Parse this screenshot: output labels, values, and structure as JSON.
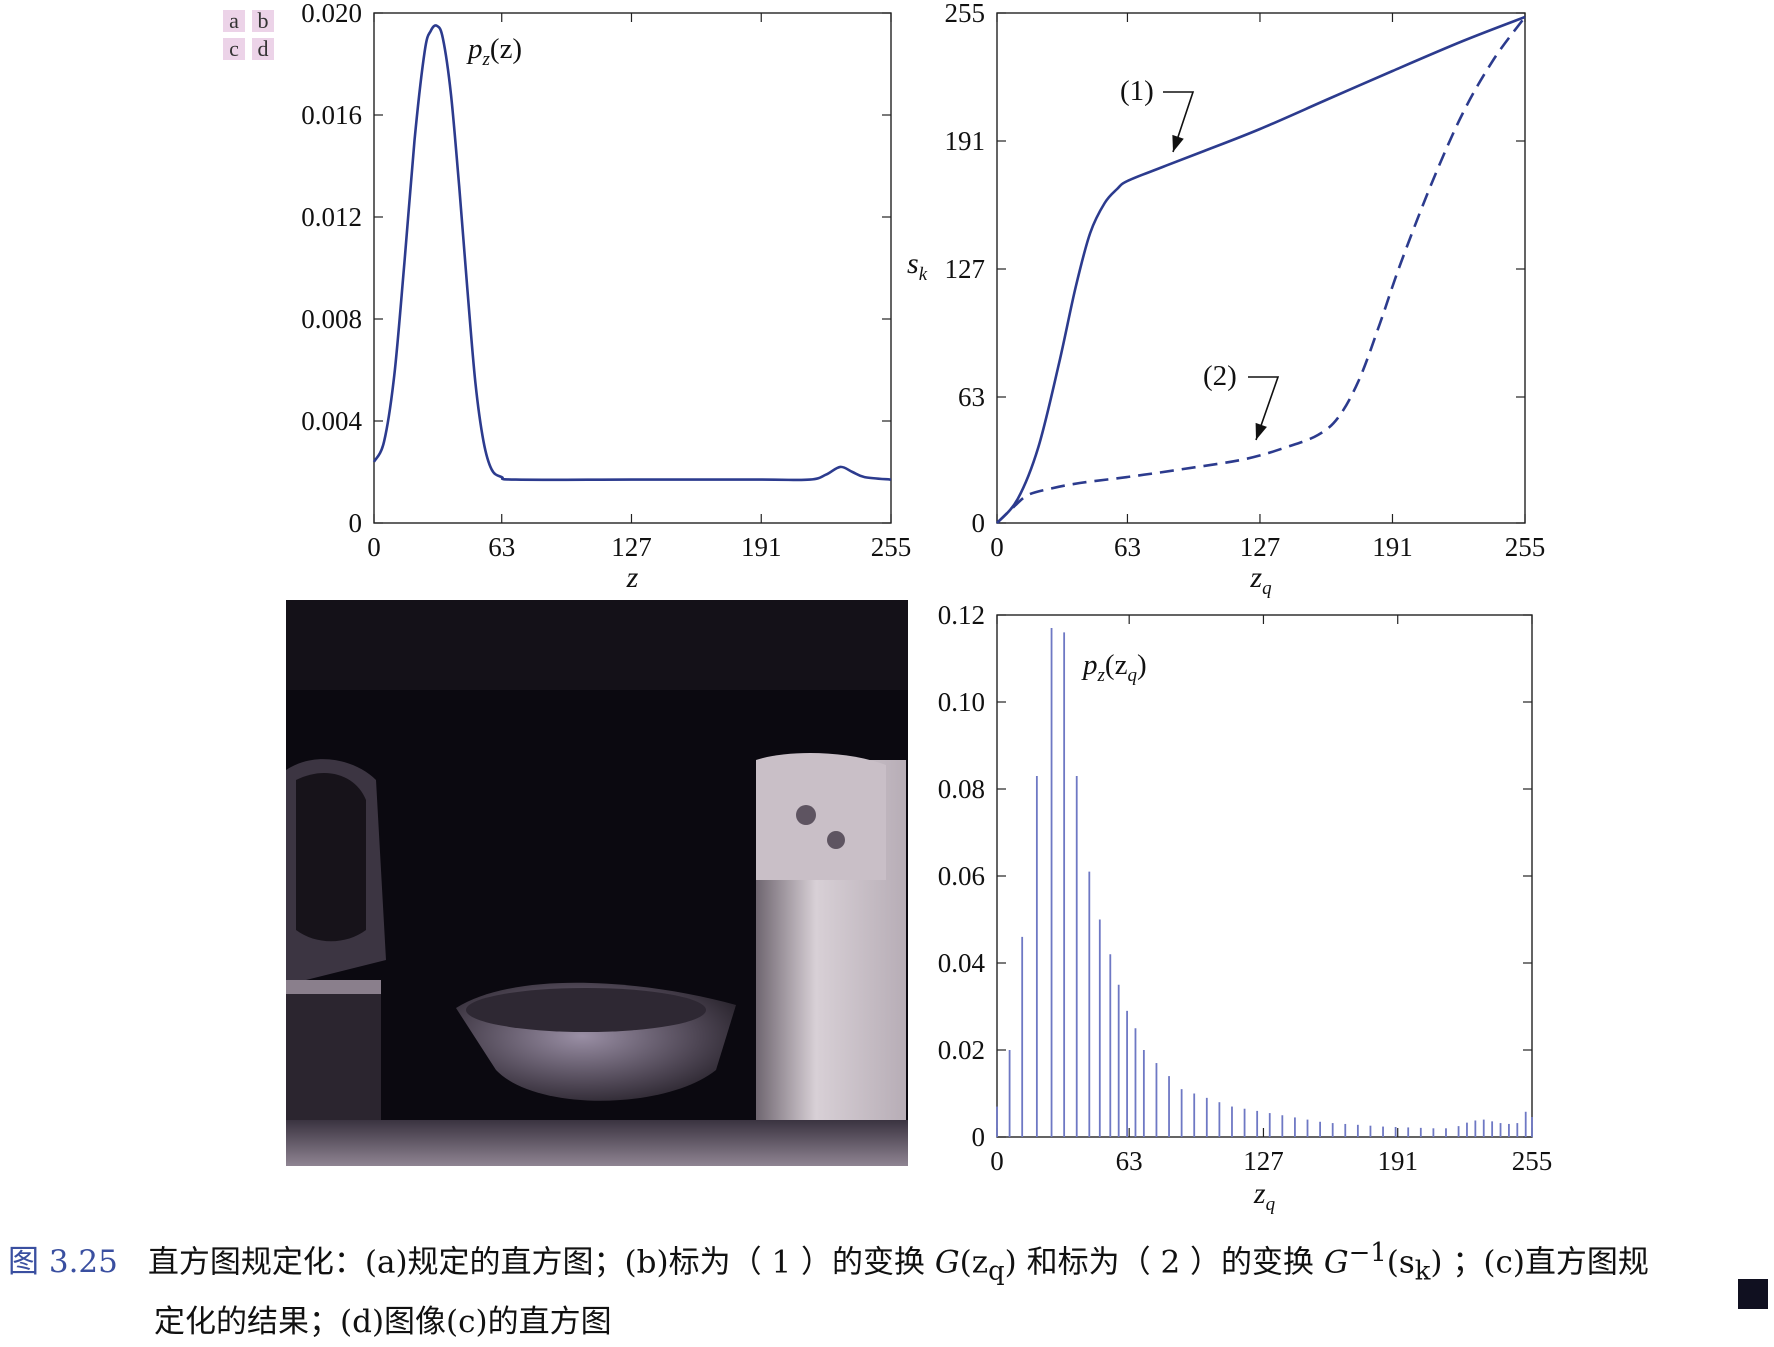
{
  "panel_tags": [
    "a",
    "b",
    "c",
    "d"
  ],
  "colors": {
    "curve": "#2c3b8e",
    "bars": "#6e78c4",
    "axis": "#222222",
    "tag_bg": "#ecd3e8",
    "caption_number": "#3a4fa0"
  },
  "chart_data": [
    {
      "panel": "a",
      "type": "line",
      "xlabel": "z",
      "ylabel": "",
      "xlim": [
        0,
        255
      ],
      "ylim": [
        0,
        0.02
      ],
      "xticks": [
        "0",
        "63",
        "127",
        "191",
        "255"
      ],
      "yticks": [
        "0",
        "0.004",
        "0.008",
        "0.012",
        "0.016",
        "0.020"
      ],
      "series": [
        {
          "name": "p_z(z)",
          "style": "solid",
          "points": [
            [
              0,
              0.0024
            ],
            [
              5,
              0.0032
            ],
            [
              10,
              0.0058
            ],
            [
              15,
              0.0102
            ],
            [
              20,
              0.015
            ],
            [
              25,
              0.0185
            ],
            [
              28,
              0.0193
            ],
            [
              31,
              0.0195
            ],
            [
              34,
              0.019
            ],
            [
              38,
              0.0168
            ],
            [
              42,
              0.0132
            ],
            [
              46,
              0.0092
            ],
            [
              50,
              0.0055
            ],
            [
              54,
              0.0032
            ],
            [
              58,
              0.0021
            ],
            [
              63,
              0.0018
            ],
            [
              70,
              0.0017
            ],
            [
              127,
              0.0017
            ],
            [
              191,
              0.0017
            ],
            [
              215,
              0.0017
            ],
            [
              223,
              0.0019
            ],
            [
              230,
              0.0022
            ],
            [
              236,
              0.002
            ],
            [
              242,
              0.0018
            ],
            [
              255,
              0.0017
            ]
          ]
        }
      ],
      "annotations": [
        {
          "text_base": "p",
          "text_sub": "z",
          "text_arg": "(z)"
        }
      ]
    },
    {
      "panel": "b",
      "type": "line",
      "xlabel_base": "z",
      "xlabel_sub": "q",
      "ylabel_base": "s",
      "ylabel_sub": "k",
      "xlim": [
        0,
        255
      ],
      "ylim": [
        0,
        255
      ],
      "xticks": [
        "0",
        "63",
        "127",
        "191",
        "255"
      ],
      "yticks": [
        "0",
        "63",
        "127",
        "191",
        "255"
      ],
      "series": [
        {
          "name": "(1)",
          "style": "solid",
          "points": [
            [
              0,
              0
            ],
            [
              10,
              12
            ],
            [
              20,
              38
            ],
            [
              30,
              80
            ],
            [
              38,
              118
            ],
            [
              45,
              145
            ],
            [
              52,
              160
            ],
            [
              58,
              167
            ],
            [
              63,
              171
            ],
            [
              80,
              178
            ],
            [
              100,
              186
            ],
            [
              127,
              197
            ],
            [
              160,
              212
            ],
            [
              191,
              226
            ],
            [
              225,
              241
            ],
            [
              255,
              253
            ]
          ]
        },
        {
          "name": "(2)",
          "style": "dashed",
          "points": [
            [
              0,
              0
            ],
            [
              8,
              8
            ],
            [
              15,
              14
            ],
            [
              25,
              17
            ],
            [
              40,
              20
            ],
            [
              63,
              23
            ],
            [
              90,
              27
            ],
            [
              120,
              32
            ],
            [
              140,
              38
            ],
            [
              155,
              44
            ],
            [
              165,
              53
            ],
            [
              175,
              72
            ],
            [
              185,
              100
            ],
            [
              195,
              130
            ],
            [
              210,
              170
            ],
            [
              225,
              205
            ],
            [
              240,
              232
            ],
            [
              255,
              253
            ]
          ]
        }
      ],
      "annotations": [
        "(1)",
        "(2)"
      ]
    },
    {
      "panel": "d",
      "type": "bar",
      "xlabel_base": "z",
      "xlabel_sub": "q",
      "ylabel": "",
      "xlim": [
        0,
        255
      ],
      "ylim": [
        0,
        0.12
      ],
      "xticks": [
        "0",
        "63",
        "127",
        "191",
        "255"
      ],
      "yticks": [
        "0",
        "0.02",
        "0.04",
        "0.06",
        "0.08",
        "0.10",
        "0.12"
      ],
      "bars": [
        [
          0,
          0.007
        ],
        [
          6,
          0.02
        ],
        [
          12,
          0.046
        ],
        [
          19,
          0.083
        ],
        [
          26,
          0.117
        ],
        [
          32,
          0.116
        ],
        [
          38,
          0.083
        ],
        [
          44,
          0.061
        ],
        [
          49,
          0.05
        ],
        [
          54,
          0.042
        ],
        [
          58,
          0.035
        ],
        [
          62,
          0.029
        ],
        [
          66,
          0.025
        ],
        [
          70,
          0.02
        ],
        [
          76,
          0.017
        ],
        [
          82,
          0.014
        ],
        [
          88,
          0.011
        ],
        [
          94,
          0.01
        ],
        [
          100,
          0.009
        ],
        [
          106,
          0.008
        ],
        [
          112,
          0.007
        ],
        [
          118,
          0.0065
        ],
        [
          124,
          0.006
        ],
        [
          130,
          0.0055
        ],
        [
          136,
          0.005
        ],
        [
          142,
          0.0045
        ],
        [
          148,
          0.004
        ],
        [
          154,
          0.0035
        ],
        [
          160,
          0.0032
        ],
        [
          166,
          0.003
        ],
        [
          172,
          0.0028
        ],
        [
          178,
          0.0026
        ],
        [
          184,
          0.0024
        ],
        [
          190,
          0.0023
        ],
        [
          196,
          0.0022
        ],
        [
          202,
          0.0021
        ],
        [
          208,
          0.002
        ],
        [
          214,
          0.002
        ],
        [
          220,
          0.0025
        ],
        [
          224,
          0.0033
        ],
        [
          228,
          0.0038
        ],
        [
          232,
          0.004
        ],
        [
          236,
          0.0036
        ],
        [
          240,
          0.0032
        ],
        [
          244,
          0.003
        ],
        [
          248,
          0.0032
        ],
        [
          252,
          0.0058
        ],
        [
          255,
          0.0046
        ]
      ],
      "annotations": [
        {
          "text_base": "p",
          "text_sub": "z",
          "text_arg_base": "(z",
          "text_arg_sub": "q",
          "text_arg_close": ")"
        }
      ]
    }
  ],
  "caption": {
    "number": "图  3.25",
    "line1_a": "直方图规定化：(a)规定的直方图；(b)标为（ 1 ）的变换 ",
    "g_base": "G",
    "g_arg_open": "(z",
    "g_sub": "q",
    "g_arg_close": ")",
    "line1_b": " 和标为（ 2 ）的变换 ",
    "ginv_base": "G",
    "ginv_sup": "−1",
    "ginv_arg_open": "(s",
    "ginv_sub": "k",
    "ginv_arg_close": ")",
    "line1_c": " ；(c)直方图规",
    "line2": "定化的结果；(d)图像(c)的直方图"
  }
}
